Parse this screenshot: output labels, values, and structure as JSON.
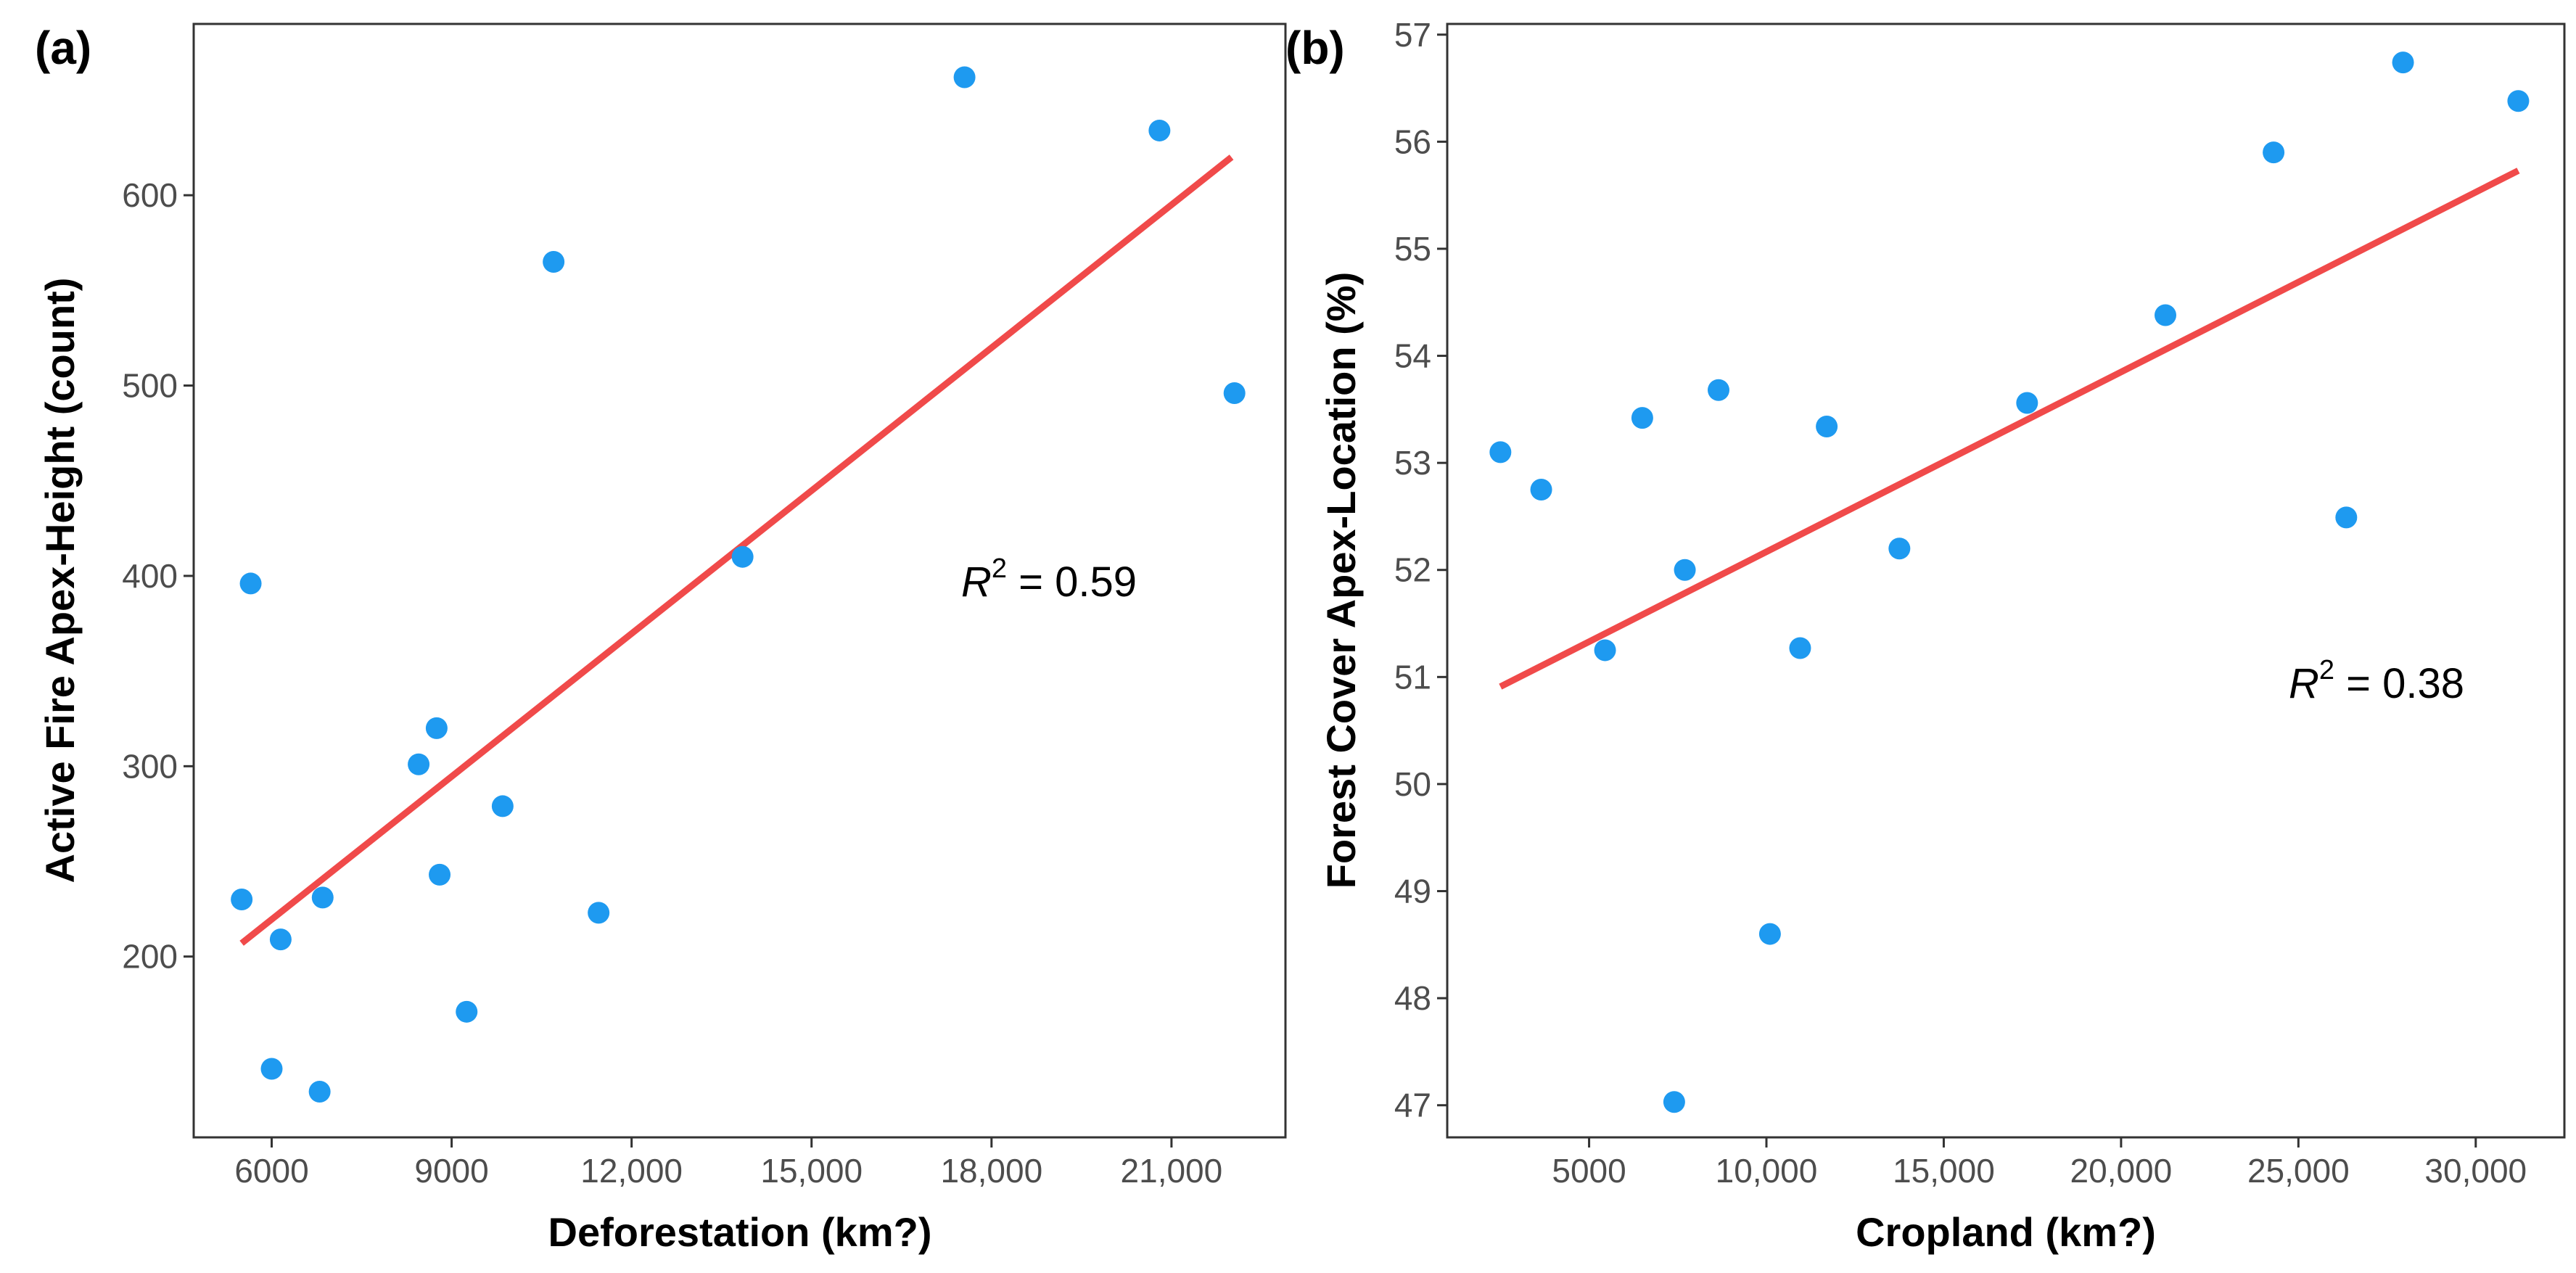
{
  "chart_data": [
    {
      "panel": "(a)",
      "type": "scatter",
      "xlabel": "Deforestation (km?)",
      "ylabel": "Active Fire Apex-Height (count)",
      "xlim": [
        4700,
        22900
      ],
      "ylim": [
        105,
        690
      ],
      "x_ticks": [
        6000,
        9000,
        12000,
        15000,
        18000,
        21000
      ],
      "x_tick_labels": [
        "6000",
        "9000",
        "12,000",
        "15,000",
        "18,000",
        "21,000"
      ],
      "y_ticks": [
        200,
        300,
        400,
        500,
        600
      ],
      "y_tick_labels": [
        "200",
        "300",
        "400",
        "500",
        "600"
      ],
      "points": [
        {
          "x": 5500,
          "y": 230
        },
        {
          "x": 5650,
          "y": 396
        },
        {
          "x": 6000,
          "y": 141
        },
        {
          "x": 6150,
          "y": 209
        },
        {
          "x": 6800,
          "y": 129
        },
        {
          "x": 6850,
          "y": 231
        },
        {
          "x": 8450,
          "y": 301
        },
        {
          "x": 8750,
          "y": 320
        },
        {
          "x": 8800,
          "y": 243
        },
        {
          "x": 9250,
          "y": 171
        },
        {
          "x": 9850,
          "y": 279
        },
        {
          "x": 10700,
          "y": 565
        },
        {
          "x": 11450,
          "y": 223
        },
        {
          "x": 13850,
          "y": 410
        },
        {
          "x": 17550,
          "y": 662
        },
        {
          "x": 20800,
          "y": 634
        },
        {
          "x": 22050,
          "y": 496
        }
      ],
      "fit_line": {
        "x": [
          5500,
          22000
        ],
        "y": [
          207,
          620
        ]
      },
      "annotation": {
        "r_label": "R",
        "sup": "2",
        "value": " = 0.59"
      },
      "colors": {
        "points": "#1e9af0",
        "line": "#f04a4a"
      },
      "grid": false
    },
    {
      "panel": "(b)",
      "type": "scatter",
      "xlabel": "Cropland (km?)",
      "ylabel": "Forest Cover Apex-Location (%)",
      "xlim": [
        1000,
        32500
      ],
      "ylim": [
        46.7,
        57.1
      ],
      "x_ticks": [
        5000,
        10000,
        15000,
        20000,
        25000,
        30000
      ],
      "x_tick_labels": [
        "5000",
        "10,000",
        "15,000",
        "20,000",
        "25,000",
        "30,000"
      ],
      "y_ticks": [
        47,
        48,
        49,
        50,
        51,
        52,
        53,
        54,
        55,
        56,
        57
      ],
      "y_tick_labels": [
        "47",
        "48",
        "49",
        "50",
        "51",
        "52",
        "53",
        "54",
        "55",
        "56",
        "57"
      ],
      "points": [
        {
          "x": 2500,
          "y": 53.1
        },
        {
          "x": 3650,
          "y": 52.75
        },
        {
          "x": 5450,
          "y": 51.25
        },
        {
          "x": 6500,
          "y": 53.42
        },
        {
          "x": 7400,
          "y": 47.03
        },
        {
          "x": 7700,
          "y": 52.0
        },
        {
          "x": 8650,
          "y": 53.68
        },
        {
          "x": 10100,
          "y": 48.6
        },
        {
          "x": 10950,
          "y": 51.27
        },
        {
          "x": 11700,
          "y": 53.34
        },
        {
          "x": 13750,
          "y": 52.2
        },
        {
          "x": 17350,
          "y": 53.56
        },
        {
          "x": 21250,
          "y": 54.38
        },
        {
          "x": 24300,
          "y": 55.9
        },
        {
          "x": 26350,
          "y": 52.49
        },
        {
          "x": 27950,
          "y": 56.74
        },
        {
          "x": 31200,
          "y": 56.38
        }
      ],
      "fit_line": {
        "x": [
          2500,
          31200
        ],
        "y": [
          50.91,
          55.73
        ]
      },
      "annotation": {
        "r_label": "R",
        "sup": "2",
        "value": " = 0.38"
      },
      "colors": {
        "points": "#1e9af0",
        "line": "#f04a4a"
      },
      "grid": false
    }
  ]
}
